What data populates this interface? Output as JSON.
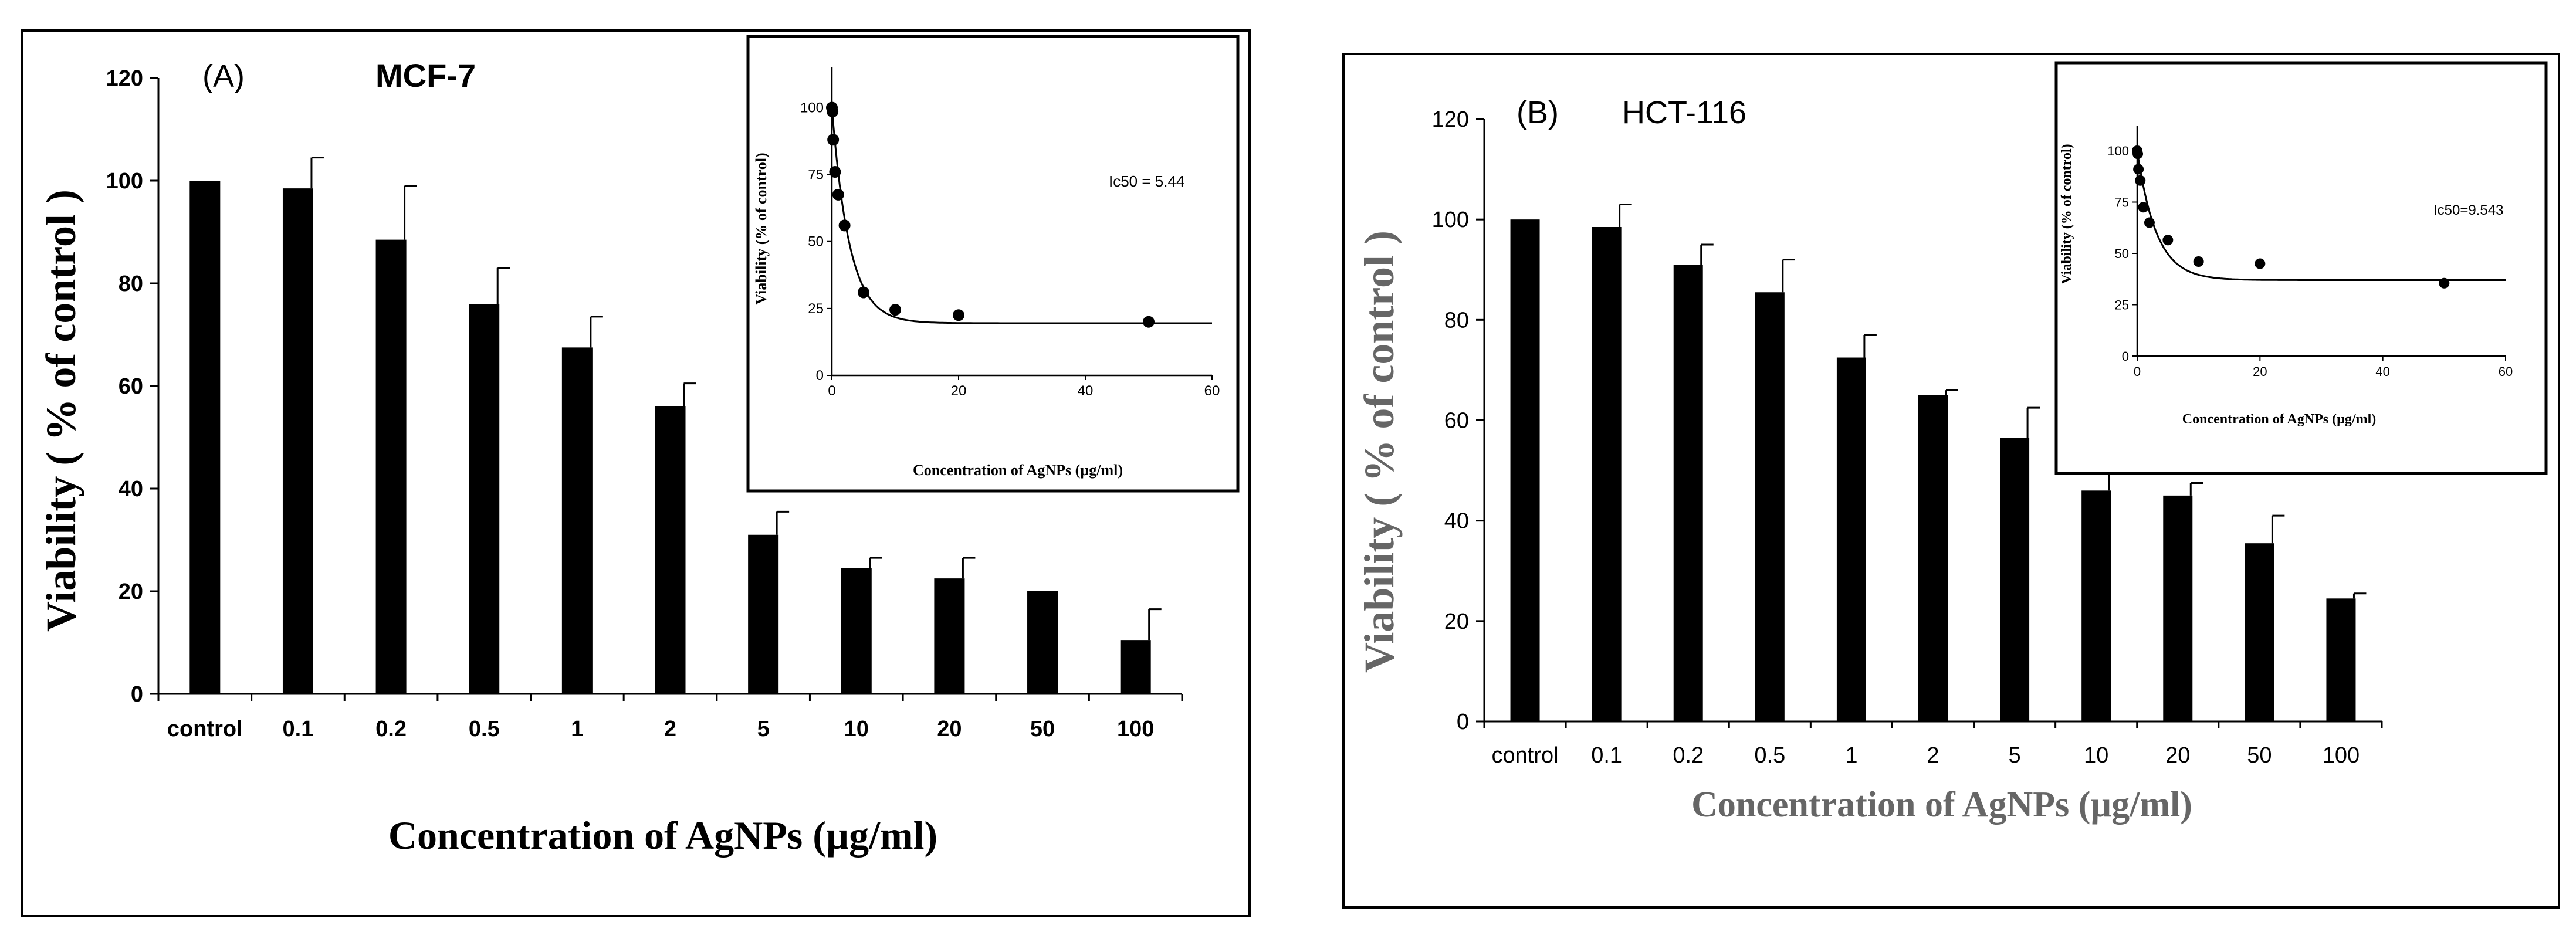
{
  "colors": {
    "bar": "#000000",
    "frame": "#000000",
    "text_dark": "#000000",
    "text_grey_b": "#666666",
    "background": "#ffffff"
  },
  "chart_data": [
    {
      "id": "A",
      "type": "bar",
      "panel_label": "(A)",
      "title": "MCF-7",
      "xlabel": "Concentration of AgNPs (µg/ml)",
      "ylabel": "Viability ( % of control )",
      "categories": [
        "control",
        "0.1",
        "0.2",
        "0.5",
        "1",
        "2",
        "5",
        "10",
        "20",
        "50",
        "100"
      ],
      "values": [
        100,
        98.5,
        88.5,
        76,
        67.5,
        56,
        31,
        24.5,
        22.5,
        20,
        10.5
      ],
      "errors": [
        0,
        6,
        10.5,
        7,
        6,
        4.5,
        4.5,
        2,
        4,
        0,
        6
      ],
      "ylim": [
        0,
        120
      ],
      "yticks": [
        0,
        20,
        40,
        60,
        80,
        100,
        120
      ],
      "inset": {
        "type": "scatter",
        "xlabel": "Concentration of AgNPs (µg/ml)",
        "ylabel": "Viability (% of control)",
        "annotation": "Ic50 = 5.44",
        "xlim": [
          0,
          60
        ],
        "ylim": [
          0,
          115
        ],
        "xticks": [
          0,
          20,
          40,
          60
        ],
        "yticks": [
          0,
          25,
          50,
          75,
          100
        ],
        "points_x": [
          0,
          0.1,
          0.2,
          0.5,
          1,
          2,
          5,
          10,
          20,
          50
        ],
        "points_y": [
          100,
          98.5,
          88,
          76,
          67.5,
          56,
          31,
          24.5,
          22.5,
          20
        ],
        "fit": {
          "bottom": 19.5,
          "top": 100,
          "k": 0.36
        }
      }
    },
    {
      "id": "B",
      "type": "bar",
      "panel_label": "(B)",
      "title": "HCT-116",
      "xlabel": "Concentration of AgNPs (µg/ml)",
      "ylabel": "Viability ( % of control )",
      "categories": [
        "control",
        "0.1",
        "0.2",
        "0.5",
        "1",
        "2",
        "5",
        "10",
        "20",
        "50",
        "100"
      ],
      "values": [
        100,
        98.5,
        91,
        85.5,
        72.5,
        65,
        56.5,
        46,
        45,
        35.5,
        24.5
      ],
      "errors": [
        0,
        4.5,
        4,
        6.5,
        4.5,
        1,
        6,
        3.5,
        2.5,
        5.5,
        1
      ],
      "ylim": [
        0,
        120
      ],
      "yticks": [
        0,
        20,
        40,
        60,
        80,
        100,
        120
      ],
      "inset": {
        "type": "scatter",
        "xlabel": "Concentration of AgNPs (µg/ml)",
        "ylabel": "Viability (% of control)",
        "annotation": "Ic50=9.543",
        "xlim": [
          0,
          60
        ],
        "ylim": [
          0,
          112
        ],
        "xticks": [
          0,
          20,
          40,
          60
        ],
        "yticks": [
          0,
          25,
          50,
          75,
          100
        ],
        "points_x": [
          0,
          0.1,
          0.2,
          0.5,
          1,
          2,
          5,
          10,
          20,
          50
        ],
        "points_y": [
          100,
          98.5,
          91,
          85.5,
          72.5,
          65,
          56.5,
          46,
          45,
          35.5
        ],
        "fit": {
          "bottom": 37,
          "top": 100,
          "k": 0.32
        }
      }
    }
  ]
}
